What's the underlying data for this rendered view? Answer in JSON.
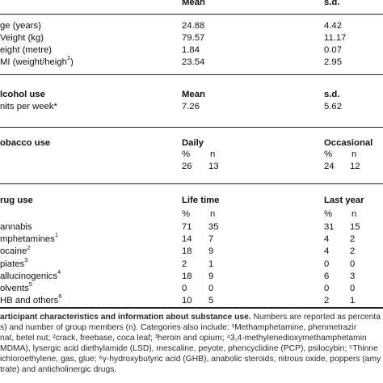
{
  "body_measures": {
    "header": {
      "mean": "Mean",
      "sd": "s.d."
    },
    "rows": [
      {
        "label": "ge (years)",
        "mean": "24.88",
        "sd": "4.42"
      },
      {
        "label": "Veight (kg)",
        "mean": "79.57",
        "sd": "11.17"
      },
      {
        "label": "eight (metre)",
        "mean": "1.84",
        "sd": "0.07"
      },
      {
        "label": "MI (weight/heigh",
        "label_sup": "2",
        "label_tail": ")",
        "mean": "23.54",
        "sd": "2.95"
      }
    ]
  },
  "alcohol": {
    "label": "lcohol use",
    "mean_label": "Mean",
    "sd_label": "s.d.",
    "row": {
      "label": "nits per week*",
      "mean": "7.26",
      "sd": "5.62"
    }
  },
  "tobacco": {
    "label": "obacco use",
    "daily": "Daily",
    "occasional": "Occasional",
    "pct": "%",
    "n": "n",
    "daily_pct": "26",
    "daily_n": "13",
    "occ_pct": "24",
    "occ_n": "12"
  },
  "drug": {
    "label": "rug use",
    "lifetime": "Life time",
    "lastyear": "Last year",
    "pct": "%",
    "n": "n",
    "rows": [
      {
        "label": "annabis",
        "sup": "",
        "lt_pct": "71",
        "lt_n": "35",
        "ly_pct": "31",
        "ly_n": "15"
      },
      {
        "label": "mphetamines",
        "sup": "1",
        "lt_pct": "14",
        "lt_n": "7",
        "ly_pct": "4",
        "ly_n": "2"
      },
      {
        "label": "ocaine",
        "sup": "2",
        "lt_pct": "18",
        "lt_n": "9",
        "ly_pct": "4",
        "ly_n": "2"
      },
      {
        "label": "piates",
        "sup": "3",
        "lt_pct": "2",
        "lt_n": "1",
        "ly_pct": "0",
        "ly_n": "0"
      },
      {
        "label": "allucinogenics",
        "sup": "4",
        "lt_pct": "18",
        "lt_n": "9",
        "ly_pct": "6",
        "ly_n": "3"
      },
      {
        "label": "olvents",
        "sup": "5",
        "lt_pct": "0",
        "lt_n": "0",
        "ly_pct": "0",
        "ly_n": "0"
      },
      {
        "label": "HB and others",
        "sup": "6",
        "lt_pct": "10",
        "lt_n": "5",
        "ly_pct": "2",
        "ly_n": "1"
      }
    ]
  },
  "caption": {
    "lines": [
      {
        "bold": "articipant characteristics and information about substance use.",
        "text": " Numbers are reported as percenta"
      },
      {
        "bold": "",
        "text": "s) and number of group members (n). Categories also include: ¹Methamphetamine, phenmetrazir"
      },
      {
        "bold": "",
        "text": "nat, betel nut; ²crack, freebase, coca leaf; ³heroin and opium; ⁴3,4-methylenedioxymethamphetamin"
      },
      {
        "bold": "",
        "text": "MDMA), lysergic acid diethylamide (LSD), mescaline, peyote, phencyclidine (PCP), psilocybin; ⁵Thinne"
      },
      {
        "bold": "",
        "text": "ichloroethylene, gas, glue; ⁶γ-hydroxybutyric acid (GHB), anabolic steroids, nitrous oxide, poppers (amy"
      },
      {
        "bold": "",
        "text": "trate) and anticholinergic drugs."
      }
    ]
  }
}
